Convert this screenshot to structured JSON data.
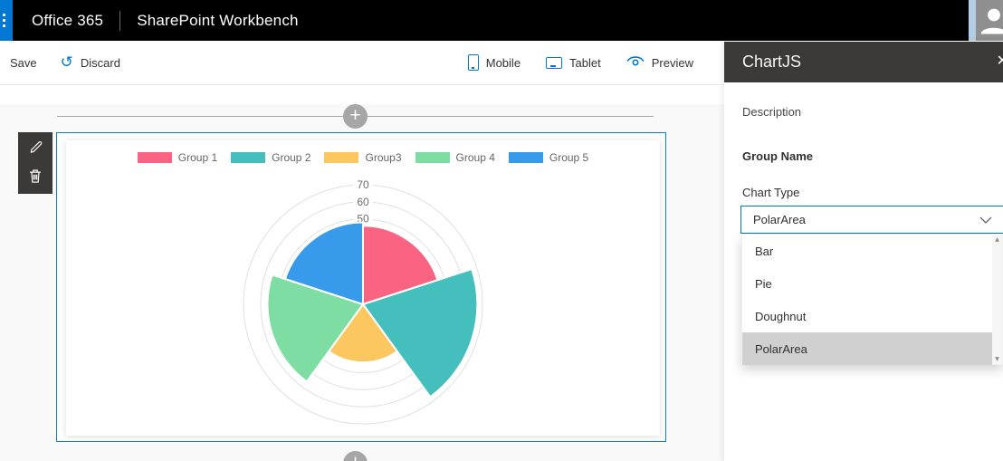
{
  "top_bar": {
    "brand": "Office 365",
    "app_title": "SharePoint Workbench"
  },
  "command_bar": {
    "save_label": "Save",
    "discard_label": "Discard",
    "mobile_label": "Mobile",
    "tablet_label": "Tablet",
    "preview_label": "Preview"
  },
  "icons": {
    "undo": "↺",
    "close": "✕",
    "plus": "+",
    "scroll_up": "▲",
    "scroll_down": "▼"
  },
  "property_pane": {
    "title": "ChartJS",
    "description_label": "Description",
    "group_name_label": "Group Name",
    "chart_type_label": "Chart Type",
    "chart_type_value": "PolarArea",
    "chart_type_options": [
      "Bar",
      "Pie",
      "Doughnut",
      "PolarArea"
    ],
    "selected_option": "PolarArea"
  },
  "chart_data": {
    "type": "polarArea",
    "categories": [
      "Group 1",
      "Group 2",
      "Group3",
      "Group 4",
      "Group 5"
    ],
    "values": [
      46,
      67,
      34,
      56,
      48
    ],
    "colors": [
      "#fa6482",
      "#45bfbd",
      "#fcc75f",
      "#7edda3",
      "#389aea"
    ],
    "rmax": 70,
    "tick_step": 10,
    "ticks": [
      10,
      20,
      30,
      40,
      50,
      60,
      70
    ],
    "visible_tick_labels": [
      70,
      60,
      50
    ],
    "legend_position": "top",
    "grid": true,
    "gridline_color": "#e0e0e0",
    "tick_label_color": "#6e6e6e",
    "legend_label_color": "#666666"
  },
  "colors": {
    "accent": "#0078d4",
    "suite_bar": "#000000",
    "pane_header": "#3b3a39",
    "selected_option_bg": "#d0d0d0",
    "webpart_border": "#1079d6"
  }
}
